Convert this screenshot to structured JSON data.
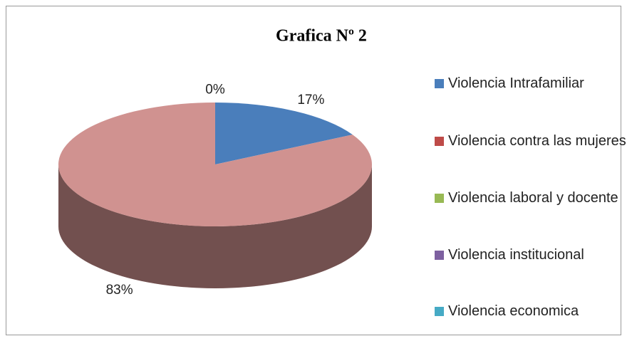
{
  "chart_data": {
    "type": "pie3d",
    "title": "Grafica Nº 2",
    "categories": [
      "Violencia Intrafamiliar",
      "Violencia contra las mujeres",
      "Violencia laboral y docente",
      "Violencia institucional",
      "Violencia economica"
    ],
    "values": [
      17,
      83,
      0,
      0,
      0
    ],
    "value_labels": [
      "17%",
      "83%",
      "0%",
      null,
      null
    ],
    "colors": [
      "#4a7ebb",
      "#d09290",
      "#98b954",
      "#7d60a0",
      "#46aac5"
    ],
    "legend_colors": [
      "#4a7ebb",
      "#be4b48",
      "#98b954",
      "#7d60a0",
      "#46aac5"
    ],
    "legend": "right"
  }
}
